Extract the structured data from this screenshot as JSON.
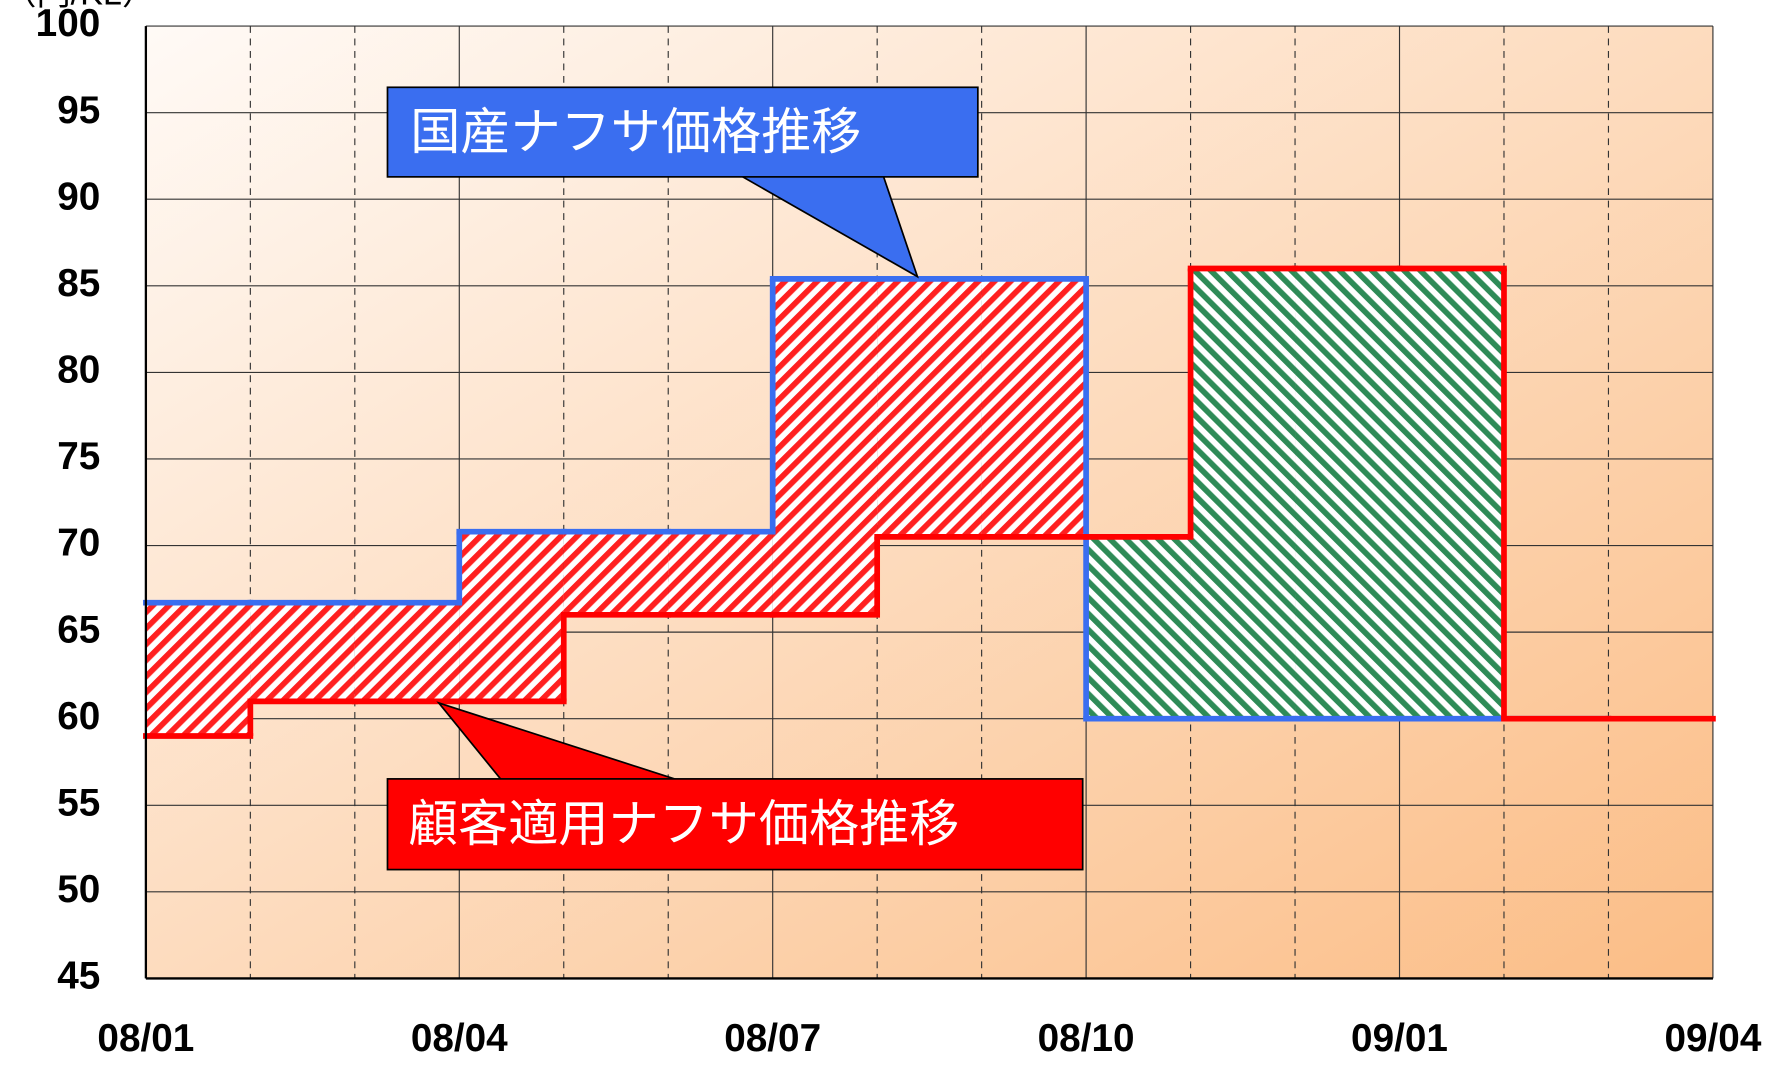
{
  "chart_data": {
    "type": "step",
    "y_unit_label": "（円/KL）",
    "categories": [
      "08/01",
      null,
      null,
      "08/04",
      null,
      null,
      "08/07",
      null,
      null,
      "08/10",
      null,
      null,
      "09/01",
      null,
      null,
      "09/04"
    ],
    "series": [
      {
        "name": "国産ナフサ価格推移",
        "color": "#3a6ef0",
        "values": [
          66.7,
          66.7,
          66.7,
          70.8,
          70.8,
          70.8,
          85.4,
          85.4,
          85.4,
          60,
          60,
          60,
          60,
          60,
          null,
          null
        ]
      },
      {
        "name": "顧客適用ナフサ価格推移",
        "color": "#ff0000",
        "values": [
          59,
          61,
          61,
          61,
          66,
          66,
          66,
          70.5,
          70.5,
          70.5,
          86,
          86,
          86,
          60,
          60,
          null
        ]
      }
    ],
    "hatch_colors": [
      "#ff2020",
      "#2e8b57"
    ],
    "ylim": [
      45,
      100
    ],
    "yticks": [
      45,
      50,
      55,
      60,
      65,
      70,
      75,
      80,
      85,
      90,
      95,
      100
    ],
    "grid": true
  }
}
